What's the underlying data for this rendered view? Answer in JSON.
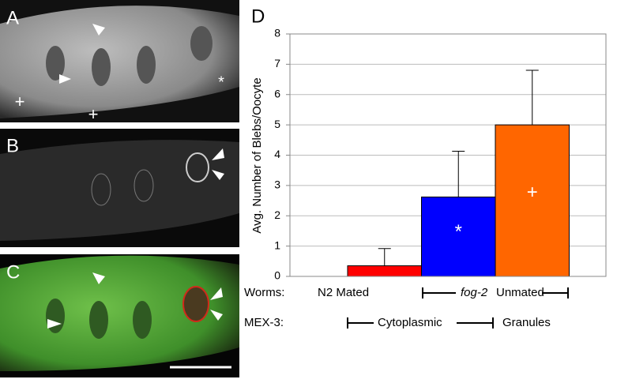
{
  "panels": [
    {
      "label": "A",
      "symbols": [
        "+",
        "+",
        "*"
      ]
    },
    {
      "label": "B"
    },
    {
      "label": "C"
    }
  ],
  "chart_data": {
    "type": "bar",
    "panel_label": "D",
    "y_label": "Avg. Number of Blebs/Oocyte",
    "categories": [
      null,
      null,
      null
    ],
    "values": [
      0.35,
      2.62,
      5.0
    ],
    "errors": [
      0.57,
      1.51,
      1.8
    ],
    "colors": [
      "#ff0000",
      "#0000ff",
      "#ff6600"
    ],
    "bar_symbols": [
      null,
      "*",
      "+"
    ],
    "ylim": [
      0,
      8
    ],
    "yticks": [
      0,
      1,
      2,
      3,
      4,
      5,
      6,
      7,
      8
    ],
    "grid": true,
    "groups": {
      "worms": {
        "label": "Worms:",
        "first": "N2 Mated",
        "second_italic": "fog-2",
        "second": "Unmated"
      },
      "mex3": {
        "label": "MEX-3:",
        "first": "Cytoplasmic",
        "second": "Granules"
      }
    }
  }
}
